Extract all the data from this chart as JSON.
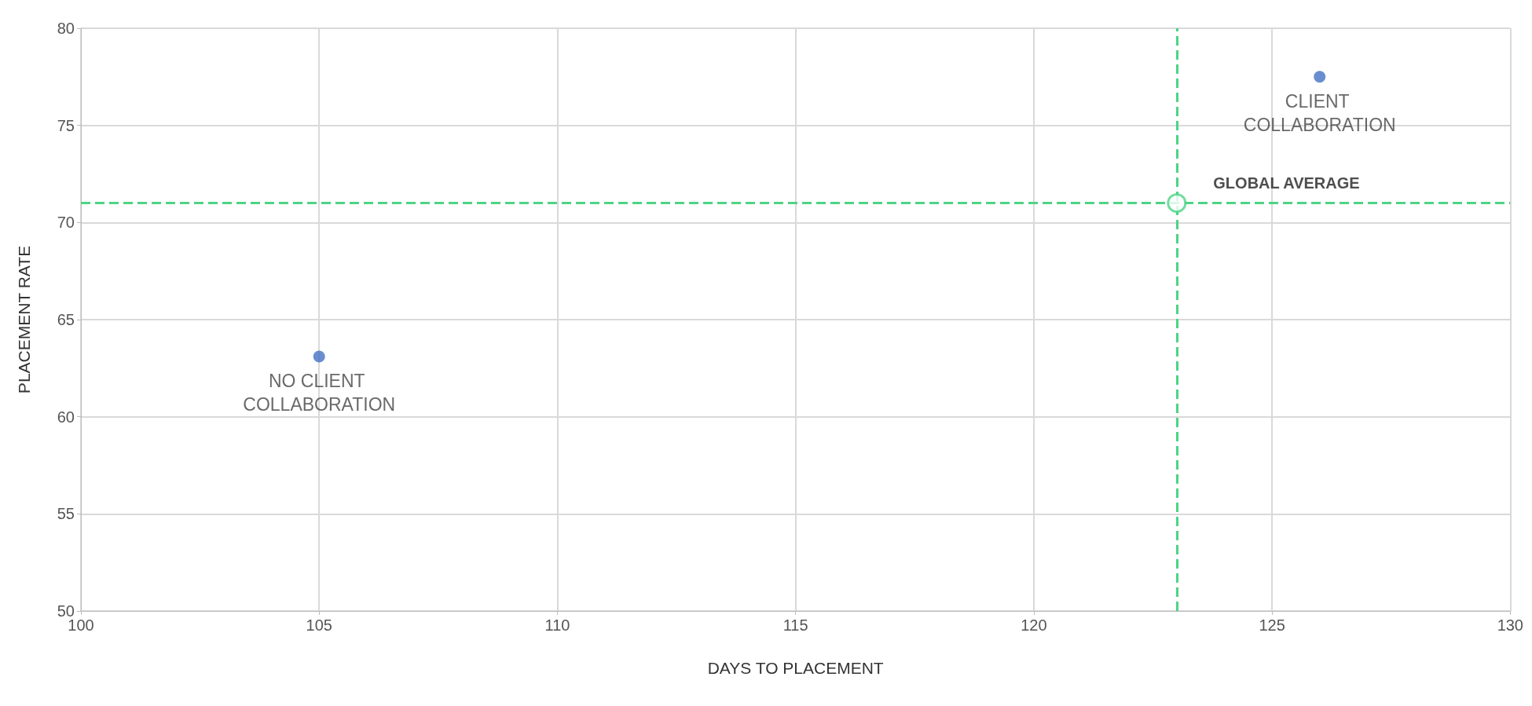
{
  "chart_data": {
    "type": "scatter",
    "xlabel": "DAYS TO PLACEMENT",
    "ylabel": "PLACEMENT RATE",
    "x": [
      105,
      126
    ],
    "values": [
      63.1,
      77.5
    ],
    "color": "#4472c4",
    "marker": "circle",
    "xlim": [
      100,
      130
    ],
    "xticks": [
      100,
      105,
      110,
      115,
      120,
      125,
      130
    ],
    "ylim": [
      50,
      80
    ],
    "yticks": [
      50,
      55,
      60,
      65,
      70,
      75,
      80
    ],
    "grid": true,
    "ref_lines": [
      {
        "axis": "x",
        "value": 123,
        "color": "#4cd484",
        "line_style": "dashed"
      },
      {
        "axis": "y",
        "value": 71,
        "color": "#4cd484",
        "line_style": "dashed"
      }
    ],
    "annotations": [
      {
        "text": "NO CLIENT COLLABORATION",
        "x": 105,
        "y": 63.1
      },
      {
        "text": "CLIENT COLLABORATION",
        "x": 126,
        "y": 77.5
      },
      {
        "text": "GLOBAL AVERAGE",
        "x": 123,
        "y": 71
      }
    ]
  }
}
